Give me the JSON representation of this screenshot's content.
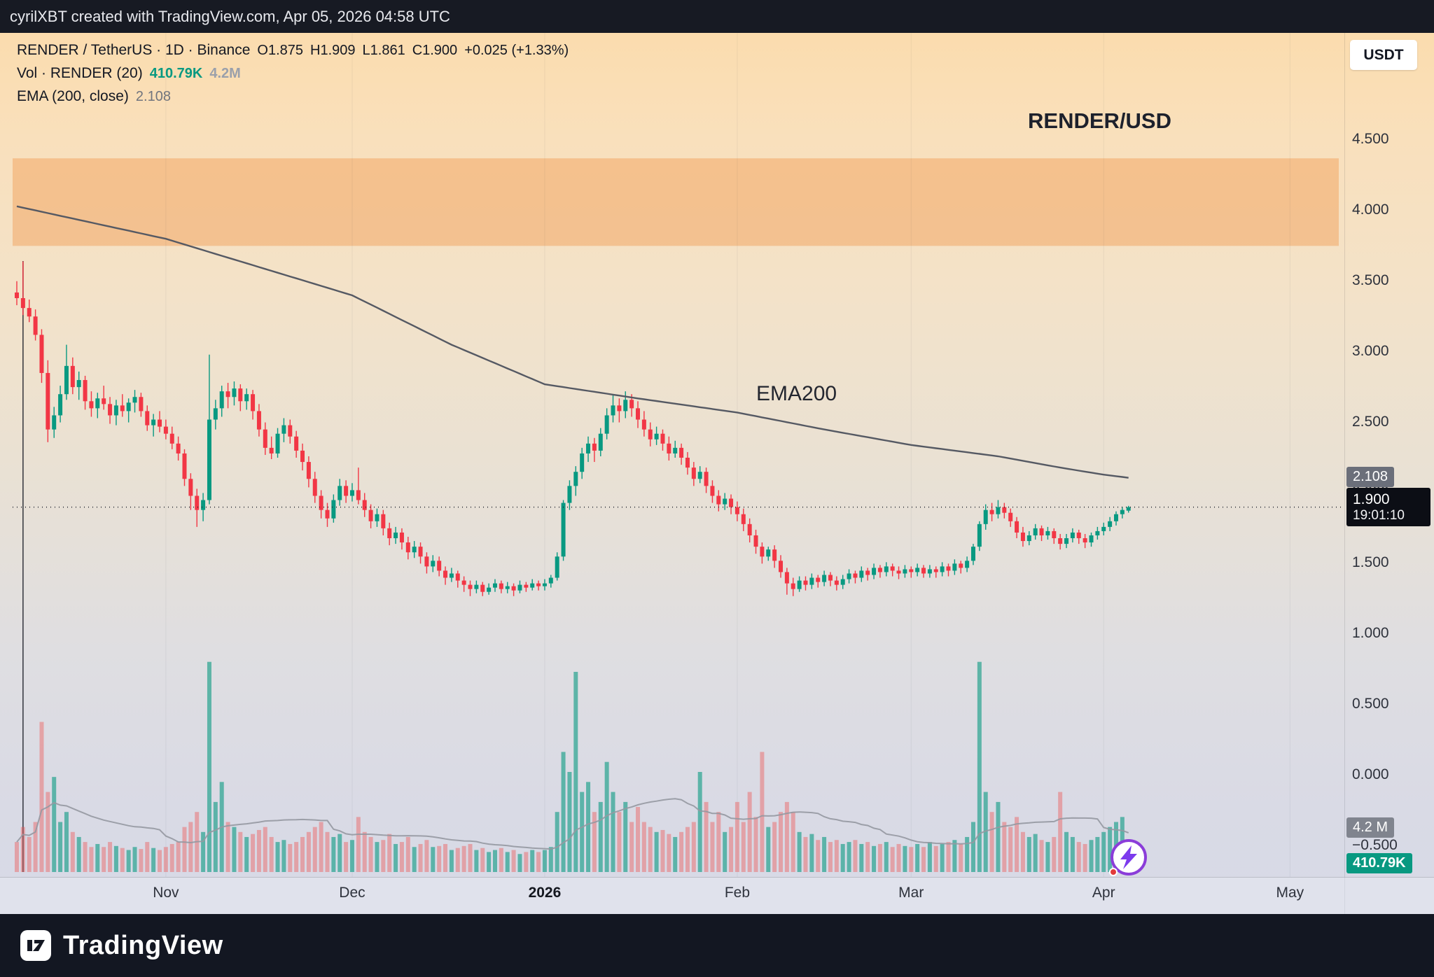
{
  "top_bar": {
    "credit": "cyrilXBT created with TradingView.com, Apr 05, 2026 04:58 UTC"
  },
  "toolbar": {
    "currency_button": "USDT"
  },
  "legend": {
    "title": "RENDER / TetherUS · 1D · Binance",
    "o": "O1.875",
    "h": "H1.909",
    "l": "L1.861",
    "c": "C1.900",
    "change": "+0.025 (+1.33%)",
    "volume_label": "Vol · RENDER (20)",
    "volume_value": "410.79K",
    "volume_ma": "4.2M",
    "ema_label": "EMA (200, close)",
    "ema_value": "2.108"
  },
  "annotations": {
    "watermark_symbol": "RENDER/USD",
    "ema_label": "EMA200"
  },
  "badges": {
    "ema": "2.108",
    "price": "1.900",
    "countdown": "19:01:10",
    "vol_ma": "4.2 M",
    "vol": "410.79K"
  },
  "bottom_bar": {
    "brand": "TradingView"
  },
  "axes": {
    "price_ticks": [
      {
        "v": 4.5,
        "label": "4.500"
      },
      {
        "v": 4.0,
        "label": "4.000"
      },
      {
        "v": 3.5,
        "label": "3.500"
      },
      {
        "v": 3.0,
        "label": "3.000"
      },
      {
        "v": 2.5,
        "label": "2.500"
      },
      {
        "v": 2.0,
        "label": "2.000"
      },
      {
        "v": 1.5,
        "label": "1.500"
      },
      {
        "v": 1.0,
        "label": "1.000"
      },
      {
        "v": 0.5,
        "label": "0.500"
      },
      {
        "v": 0.0,
        "label": "0.000"
      },
      {
        "v": -0.5,
        "label": "−0.500"
      }
    ],
    "time_ticks": [
      {
        "i": 24,
        "label": "Nov"
      },
      {
        "i": 54,
        "label": "Dec"
      },
      {
        "i": 85,
        "label": "2026",
        "bold": true
      },
      {
        "i": 116,
        "label": "Feb"
      },
      {
        "i": 144,
        "label": "Mar"
      },
      {
        "i": 175,
        "label": "Apr"
      },
      {
        "i": 205,
        "label": "May"
      }
    ]
  },
  "chart_data": {
    "type": "candlestick",
    "title": "RENDER/USD",
    "symbol": "RENDER / TetherUS",
    "interval": "1D",
    "exchange": "Binance",
    "last": {
      "o": 1.875,
      "h": 1.909,
      "l": 1.861,
      "c": 1.9,
      "change": 0.025,
      "change_pct": 1.33
    },
    "current_price": 1.9,
    "supply_zone": {
      "from": 3.75,
      "to": 4.37
    },
    "ema200": {
      "period": 200,
      "source": "close",
      "value": 2.108,
      "anchors": [
        [
          0,
          4.03
        ],
        [
          24,
          3.8
        ],
        [
          54,
          3.4
        ],
        [
          70,
          3.05
        ],
        [
          85,
          2.77
        ],
        [
          100,
          2.67
        ],
        [
          116,
          2.57
        ],
        [
          130,
          2.45
        ],
        [
          144,
          2.34
        ],
        [
          158,
          2.26
        ],
        [
          168,
          2.18
        ],
        [
          175,
          2.13
        ],
        [
          179,
          2.108
        ]
      ]
    },
    "volume_ma_period": 20,
    "volume_current": "410.79K",
    "volume_ma_value": "4.2M",
    "colors": {
      "up": "#089981",
      "down": "#f23645",
      "vol_up": "rgba(8,153,129,0.60)",
      "vol_down": "rgba(239,83,80,0.42)",
      "ema": "#555963",
      "zone": "rgba(238,143,60,0.38)",
      "price_line": "#1e222d"
    },
    "candles": [
      [
        3.42,
        3.5,
        3.33,
        3.38
      ],
      [
        3.38,
        3.64,
        3.26,
        3.31
      ],
      [
        3.31,
        3.37,
        3.21,
        3.25
      ],
      [
        3.25,
        3.3,
        3.08,
        3.12
      ],
      [
        3.12,
        3.16,
        2.78,
        2.85
      ],
      [
        2.85,
        2.94,
        2.36,
        2.45
      ],
      [
        2.45,
        2.61,
        2.39,
        2.55
      ],
      [
        2.55,
        2.76,
        2.5,
        2.7
      ],
      [
        2.7,
        3.05,
        2.66,
        2.9
      ],
      [
        2.9,
        2.96,
        2.7,
        2.75
      ],
      [
        2.75,
        2.86,
        2.66,
        2.8
      ],
      [
        2.8,
        2.83,
        2.59,
        2.65
      ],
      [
        2.65,
        2.72,
        2.54,
        2.6
      ],
      [
        2.6,
        2.71,
        2.53,
        2.67
      ],
      [
        2.67,
        2.76,
        2.59,
        2.63
      ],
      [
        2.63,
        2.68,
        2.49,
        2.55
      ],
      [
        2.55,
        2.66,
        2.48,
        2.62
      ],
      [
        2.62,
        2.7,
        2.54,
        2.58
      ],
      [
        2.58,
        2.67,
        2.5,
        2.64
      ],
      [
        2.64,
        2.73,
        2.57,
        2.68
      ],
      [
        2.68,
        2.71,
        2.54,
        2.58
      ],
      [
        2.58,
        2.62,
        2.44,
        2.48
      ],
      [
        2.48,
        2.56,
        2.4,
        2.52
      ],
      [
        2.52,
        2.58,
        2.43,
        2.47
      ],
      [
        2.47,
        2.52,
        2.38,
        2.42
      ],
      [
        2.42,
        2.47,
        2.31,
        2.35
      ],
      [
        2.35,
        2.4,
        2.23,
        2.28
      ],
      [
        2.28,
        2.31,
        2.05,
        2.1
      ],
      [
        2.1,
        2.14,
        1.88,
        1.98
      ],
      [
        1.98,
        2.03,
        1.76,
        1.88
      ],
      [
        1.88,
        2.0,
        1.8,
        1.95
      ],
      [
        1.95,
        2.98,
        1.92,
        2.52
      ],
      [
        2.52,
        2.66,
        2.45,
        2.6
      ],
      [
        2.6,
        2.76,
        2.54,
        2.72
      ],
      [
        2.72,
        2.78,
        2.6,
        2.68
      ],
      [
        2.68,
        2.79,
        2.62,
        2.74
      ],
      [
        2.74,
        2.77,
        2.58,
        2.65
      ],
      [
        2.65,
        2.74,
        2.59,
        2.7
      ],
      [
        2.7,
        2.73,
        2.52,
        2.58
      ],
      [
        2.58,
        2.63,
        2.4,
        2.45
      ],
      [
        2.45,
        2.5,
        2.27,
        2.32
      ],
      [
        2.32,
        2.4,
        2.24,
        2.28
      ],
      [
        2.28,
        2.46,
        2.25,
        2.42
      ],
      [
        2.42,
        2.53,
        2.36,
        2.48
      ],
      [
        2.48,
        2.52,
        2.35,
        2.4
      ],
      [
        2.4,
        2.44,
        2.25,
        2.3
      ],
      [
        2.3,
        2.35,
        2.16,
        2.22
      ],
      [
        2.22,
        2.26,
        2.04,
        2.1
      ],
      [
        2.1,
        2.15,
        1.93,
        1.98
      ],
      [
        1.98,
        2.02,
        1.82,
        1.88
      ],
      [
        1.88,
        1.93,
        1.76,
        1.82
      ],
      [
        1.82,
        1.99,
        1.79,
        1.95
      ],
      [
        1.95,
        2.1,
        1.91,
        2.05
      ],
      [
        2.05,
        2.09,
        1.93,
        1.98
      ],
      [
        1.98,
        2.07,
        1.94,
        2.02
      ],
      [
        2.02,
        2.18,
        1.92,
        1.95
      ],
      [
        1.95,
        2.0,
        1.83,
        1.88
      ],
      [
        1.88,
        1.92,
        1.75,
        1.8
      ],
      [
        1.8,
        1.89,
        1.76,
        1.85
      ],
      [
        1.85,
        1.88,
        1.7,
        1.75
      ],
      [
        1.75,
        1.79,
        1.63,
        1.68
      ],
      [
        1.68,
        1.76,
        1.64,
        1.72
      ],
      [
        1.72,
        1.75,
        1.6,
        1.65
      ],
      [
        1.65,
        1.69,
        1.53,
        1.58
      ],
      [
        1.58,
        1.66,
        1.54,
        1.62
      ],
      [
        1.62,
        1.65,
        1.5,
        1.55
      ],
      [
        1.55,
        1.58,
        1.43,
        1.48
      ],
      [
        1.48,
        1.56,
        1.44,
        1.52
      ],
      [
        1.52,
        1.55,
        1.41,
        1.45
      ],
      [
        1.45,
        1.48,
        1.35,
        1.4
      ],
      [
        1.4,
        1.47,
        1.37,
        1.43
      ],
      [
        1.43,
        1.45,
        1.33,
        1.38
      ],
      [
        1.38,
        1.41,
        1.3,
        1.35
      ],
      [
        1.35,
        1.38,
        1.27,
        1.32
      ],
      [
        1.32,
        1.38,
        1.29,
        1.35
      ],
      [
        1.35,
        1.37,
        1.27,
        1.3
      ],
      [
        1.3,
        1.36,
        1.28,
        1.33
      ],
      [
        1.33,
        1.39,
        1.3,
        1.36
      ],
      [
        1.36,
        1.38,
        1.29,
        1.32
      ],
      [
        1.32,
        1.37,
        1.29,
        1.34
      ],
      [
        1.34,
        1.36,
        1.27,
        1.31
      ],
      [
        1.31,
        1.38,
        1.29,
        1.35
      ],
      [
        1.35,
        1.37,
        1.3,
        1.33
      ],
      [
        1.33,
        1.39,
        1.31,
        1.36
      ],
      [
        1.36,
        1.38,
        1.31,
        1.34
      ],
      [
        1.34,
        1.39,
        1.31,
        1.36
      ],
      [
        1.36,
        1.42,
        1.33,
        1.4
      ],
      [
        1.4,
        1.58,
        1.38,
        1.55
      ],
      [
        1.55,
        1.95,
        1.52,
        1.93
      ],
      [
        1.93,
        2.09,
        1.88,
        2.05
      ],
      [
        2.05,
        2.19,
        1.98,
        2.15
      ],
      [
        2.15,
        2.32,
        2.1,
        2.28
      ],
      [
        2.28,
        2.4,
        2.22,
        2.35
      ],
      [
        2.35,
        2.39,
        2.22,
        2.3
      ],
      [
        2.3,
        2.46,
        2.26,
        2.42
      ],
      [
        2.42,
        2.6,
        2.38,
        2.55
      ],
      [
        2.55,
        2.7,
        2.5,
        2.62
      ],
      [
        2.62,
        2.67,
        2.5,
        2.58
      ],
      [
        2.58,
        2.72,
        2.53,
        2.66
      ],
      [
        2.66,
        2.7,
        2.54,
        2.6
      ],
      [
        2.6,
        2.65,
        2.46,
        2.52
      ],
      [
        2.52,
        2.58,
        2.4,
        2.45
      ],
      [
        2.45,
        2.5,
        2.33,
        2.38
      ],
      [
        2.38,
        2.47,
        2.34,
        2.42
      ],
      [
        2.42,
        2.45,
        2.3,
        2.35
      ],
      [
        2.35,
        2.4,
        2.23,
        2.28
      ],
      [
        2.28,
        2.37,
        2.25,
        2.32
      ],
      [
        2.32,
        2.35,
        2.2,
        2.25
      ],
      [
        2.25,
        2.29,
        2.13,
        2.18
      ],
      [
        2.18,
        2.22,
        2.05,
        2.1
      ],
      [
        2.1,
        2.19,
        2.07,
        2.15
      ],
      [
        2.15,
        2.18,
        2.0,
        2.05
      ],
      [
        2.05,
        2.09,
        1.93,
        1.98
      ],
      [
        1.98,
        2.02,
        1.87,
        1.92
      ],
      [
        1.92,
        2.0,
        1.88,
        1.96
      ],
      [
        1.96,
        1.99,
        1.85,
        1.9
      ],
      [
        1.9,
        1.94,
        1.8,
        1.85
      ],
      [
        1.85,
        1.89,
        1.73,
        1.78
      ],
      [
        1.78,
        1.82,
        1.65,
        1.7
      ],
      [
        1.7,
        1.74,
        1.57,
        1.62
      ],
      [
        1.62,
        1.65,
        1.5,
        1.55
      ],
      [
        1.55,
        1.62,
        1.52,
        1.6
      ],
      [
        1.6,
        1.63,
        1.47,
        1.52
      ],
      [
        1.52,
        1.56,
        1.4,
        1.44
      ],
      [
        1.44,
        1.47,
        1.28,
        1.36
      ],
      [
        1.36,
        1.4,
        1.27,
        1.32
      ],
      [
        1.32,
        1.41,
        1.3,
        1.38
      ],
      [
        1.38,
        1.41,
        1.31,
        1.35
      ],
      [
        1.35,
        1.43,
        1.32,
        1.4
      ],
      [
        1.4,
        1.42,
        1.33,
        1.37
      ],
      [
        1.37,
        1.45,
        1.34,
        1.42
      ],
      [
        1.42,
        1.44,
        1.34,
        1.38
      ],
      [
        1.38,
        1.41,
        1.31,
        1.35
      ],
      [
        1.35,
        1.42,
        1.32,
        1.39
      ],
      [
        1.39,
        1.46,
        1.36,
        1.43
      ],
      [
        1.43,
        1.45,
        1.36,
        1.4
      ],
      [
        1.4,
        1.48,
        1.37,
        1.45
      ],
      [
        1.45,
        1.47,
        1.38,
        1.42
      ],
      [
        1.42,
        1.5,
        1.39,
        1.47
      ],
      [
        1.47,
        1.49,
        1.4,
        1.44
      ],
      [
        1.44,
        1.51,
        1.41,
        1.48
      ],
      [
        1.48,
        1.5,
        1.41,
        1.45
      ],
      [
        1.45,
        1.48,
        1.39,
        1.43
      ],
      [
        1.43,
        1.49,
        1.4,
        1.46
      ],
      [
        1.46,
        1.48,
        1.4,
        1.44
      ],
      [
        1.44,
        1.5,
        1.41,
        1.47
      ],
      [
        1.47,
        1.49,
        1.4,
        1.43
      ],
      [
        1.43,
        1.49,
        1.4,
        1.46
      ],
      [
        1.46,
        1.48,
        1.4,
        1.44
      ],
      [
        1.44,
        1.51,
        1.41,
        1.48
      ],
      [
        1.48,
        1.5,
        1.41,
        1.45
      ],
      [
        1.45,
        1.53,
        1.42,
        1.5
      ],
      [
        1.5,
        1.52,
        1.43,
        1.47
      ],
      [
        1.47,
        1.55,
        1.44,
        1.52
      ],
      [
        1.52,
        1.64,
        1.49,
        1.62
      ],
      [
        1.62,
        1.8,
        1.59,
        1.78
      ],
      [
        1.78,
        1.92,
        1.74,
        1.88
      ],
      [
        1.88,
        1.93,
        1.8,
        1.85
      ],
      [
        1.85,
        1.95,
        1.82,
        1.9
      ],
      [
        1.9,
        1.93,
        1.82,
        1.86
      ],
      [
        1.86,
        1.89,
        1.76,
        1.8
      ],
      [
        1.8,
        1.83,
        1.68,
        1.72
      ],
      [
        1.72,
        1.76,
        1.62,
        1.66
      ],
      [
        1.66,
        1.73,
        1.63,
        1.7
      ],
      [
        1.7,
        1.78,
        1.67,
        1.75
      ],
      [
        1.75,
        1.77,
        1.66,
        1.7
      ],
      [
        1.7,
        1.76,
        1.67,
        1.73
      ],
      [
        1.73,
        1.75,
        1.64,
        1.68
      ],
      [
        1.68,
        1.71,
        1.6,
        1.64
      ],
      [
        1.64,
        1.71,
        1.61,
        1.68
      ],
      [
        1.68,
        1.75,
        1.65,
        1.72
      ],
      [
        1.72,
        1.74,
        1.64,
        1.68
      ],
      [
        1.68,
        1.71,
        1.61,
        1.65
      ],
      [
        1.65,
        1.72,
        1.62,
        1.7
      ],
      [
        1.7,
        1.76,
        1.67,
        1.73
      ],
      [
        1.73,
        1.79,
        1.7,
        1.76
      ],
      [
        1.76,
        1.83,
        1.73,
        1.8
      ],
      [
        1.8,
        1.87,
        1.77,
        1.85
      ],
      [
        1.85,
        1.9,
        1.82,
        1.88
      ],
      [
        1.875,
        1.909,
        1.861,
        1.9
      ]
    ],
    "volumes_m": [
      3,
      4.5,
      3.5,
      5,
      15,
      8,
      9.5,
      5,
      6,
      4,
      3.5,
      3,
      2.5,
      2.8,
      2.5,
      3,
      2.6,
      2.4,
      2.2,
      2.5,
      2.3,
      3,
      2.4,
      2.2,
      2.5,
      2.8,
      3,
      4.5,
      5,
      6,
      4,
      21,
      7,
      9,
      5,
      4.5,
      4,
      3.5,
      3.8,
      4.2,
      4.5,
      3.5,
      3,
      3.2,
      2.8,
      3,
      3.5,
      4,
      4.5,
      5,
      4,
      3.5,
      3.8,
      3,
      3.2,
      5.5,
      4,
      3.5,
      3,
      3.2,
      3.8,
      2.8,
      3,
      3.5,
      2.5,
      2.8,
      3.2,
      2.5,
      2.6,
      2.8,
      2.2,
      2.4,
      2.6,
      2.8,
      2.2,
      2.4,
      2,
      2.2,
      2.4,
      2,
      2.2,
      1.8,
      2,
      2.2,
      2,
      2.2,
      2.5,
      6,
      12,
      10,
      20,
      8,
      9,
      6,
      7,
      11,
      8,
      6,
      7,
      5,
      6.5,
      5,
      4.5,
      4,
      4.2,
      3.8,
      3.5,
      4,
      4.5,
      5,
      10,
      7,
      5,
      6,
      4,
      4.5,
      7,
      5,
      8,
      5.5,
      12,
      4.5,
      5,
      6,
      7,
      6,
      4,
      3.5,
      3.8,
      3.2,
      3.5,
      3,
      3.2,
      2.8,
      3,
      3.2,
      2.8,
      3,
      2.6,
      2.8,
      3,
      2.5,
      2.8,
      2.6,
      2.5,
      2.8,
      2.5,
      3,
      2.6,
      2.8,
      3,
      3.2,
      2.8,
      3.5,
      5,
      21,
      8,
      6,
      7,
      5,
      4.5,
      5.5,
      4,
      3.5,
      3.8,
      3.2,
      3,
      3.5,
      8,
      4,
      3.5,
      3,
      2.8,
      3.2,
      3.5,
      4,
      4.5,
      5,
      5.5,
      0.41
    ]
  }
}
